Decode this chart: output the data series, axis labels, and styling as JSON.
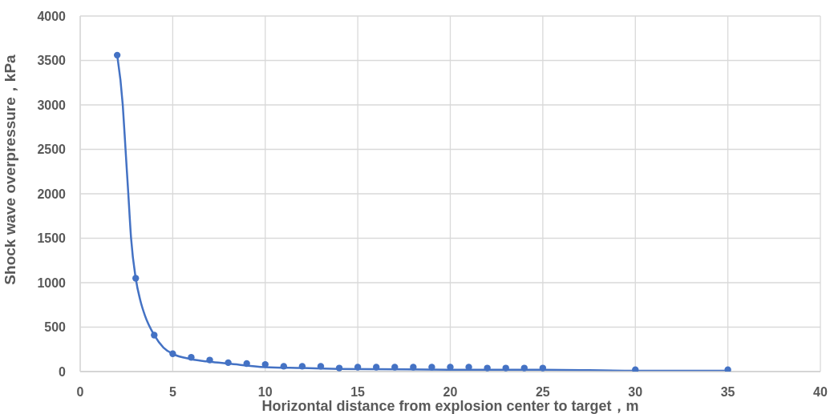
{
  "chart_data": {
    "type": "scatter",
    "xlabel": "Horizontal distance from explosion center to target，m",
    "ylabel": "Shock wave overpressure，kPa",
    "xlim": [
      0,
      40
    ],
    "xticks": [
      0,
      5,
      10,
      15,
      20,
      25,
      30,
      35,
      40
    ],
    "ylim": [
      0,
      4000
    ],
    "yticks": [
      0,
      500,
      1000,
      1500,
      2000,
      2500,
      3000,
      3500,
      4000
    ],
    "grid": true,
    "marker": "circle",
    "line_style": "solid",
    "series": [
      {
        "type": "line",
        "color": "#4472c4",
        "marker": "none",
        "x": [
          2,
          2.3,
          2.45,
          2.6,
          2.75,
          3,
          3.25,
          3.5,
          4,
          4.5,
          5,
          6,
          7,
          8,
          10,
          12,
          14,
          20,
          25,
          30,
          35
        ],
        "values": [
          3560,
          3000,
          2500,
          2000,
          1500,
          1050,
          800,
          630,
          410,
          270,
          200,
          140,
          110,
          90,
          50,
          40,
          30,
          20,
          20,
          10,
          10
        ]
      },
      {
        "color": "#4472c4",
        "x": [
          2,
          3,
          4,
          5,
          6,
          7,
          8,
          9,
          10,
          11,
          12,
          13,
          14,
          15,
          16,
          17,
          18,
          19,
          20,
          21,
          22,
          23,
          24,
          25,
          30,
          35
        ],
        "values": [
          3560,
          1050,
          410,
          200,
          160,
          130,
          100,
          90,
          80,
          60,
          60,
          60,
          40,
          50,
          50,
          50,
          50,
          50,
          50,
          50,
          40,
          40,
          40,
          40,
          20,
          20
        ]
      }
    ]
  }
}
